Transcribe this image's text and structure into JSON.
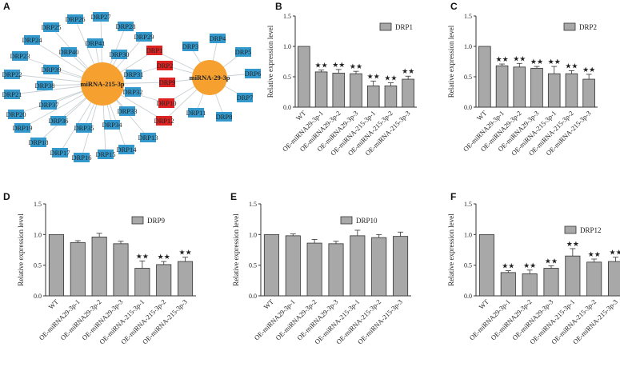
{
  "panel_labels": [
    "A",
    "B",
    "C",
    "D",
    "E",
    "F"
  ],
  "network": {
    "hubs": [
      "miRNA-215-3p",
      "miRNA-29-3p"
    ],
    "hub_color": "#f6a030",
    "blue_color": "#3399cc",
    "red_color": "#dd2222",
    "edge_color": "#c8d0d4",
    "mir215_only_targets": [
      "DRP13",
      "DRP14",
      "DRP15",
      "DRP16",
      "DRP17",
      "DRP18",
      "DRP19",
      "DRP20",
      "DRP21",
      "DRP22",
      "DRP23",
      "DRP24",
      "DRP25",
      "DRP26",
      "DRP27",
      "DRP28",
      "DRP29",
      "DRP30",
      "DRP31",
      "DRP32",
      "DRP33",
      "DRP34",
      "DRP35",
      "DRP36",
      "DRP37",
      "DRP38",
      "DRP39",
      "DRP40",
      "DRP41"
    ],
    "shared_targets": [
      "DRP1",
      "DRP2",
      "DRP9",
      "DRP10",
      "DRP12"
    ],
    "mir29_only_targets": [
      "DRP3",
      "DRP4",
      "DRP5",
      "DRP6",
      "DRP7",
      "DRP8",
      "DRP11"
    ]
  },
  "bar_style": {
    "fill": "#a8a8a8",
    "stroke": "#333333"
  },
  "chart_data": [
    {
      "panel": "B",
      "type": "bar",
      "legend": "DRP1",
      "ylabel": "Relative expression level",
      "ylim": [
        0,
        1.5
      ],
      "yticks": [
        0.0,
        0.5,
        1.0,
        1.5
      ],
      "categories": [
        "WT",
        "OE-miRNA29-3p-1",
        "OE-miRNA29-3p-2",
        "OE-miRNA29-3p-3",
        "OE-miRNA-215-3p-1",
        "OE-miRNA-215-3p-2",
        "OE-miRNA-215-3p-3"
      ],
      "values": [
        1.0,
        0.58,
        0.56,
        0.55,
        0.35,
        0.35,
        0.46
      ],
      "errors": [
        0,
        0.03,
        0.06,
        0.04,
        0.08,
        0.05,
        0.05
      ],
      "significance": [
        "",
        "★★",
        "★★",
        "★★",
        "★★",
        "★★",
        "★★"
      ]
    },
    {
      "panel": "C",
      "type": "bar",
      "legend": "DRP2",
      "ylabel": "Relative expression level",
      "ylim": [
        0,
        1.5
      ],
      "yticks": [
        0.0,
        0.5,
        1.0,
        1.5
      ],
      "categories": [
        "WT",
        "OE-miRNA29-3p-1",
        "OE-miRNA29-3p-2",
        "OE-miRNA29-3p-3",
        "OE-miRNA-215-3p-1",
        "OE-miRNA-215-3p-2",
        "OE-miRNA-215-3p-3"
      ],
      "values": [
        1.0,
        0.68,
        0.66,
        0.64,
        0.55,
        0.55,
        0.46
      ],
      "errors": [
        0,
        0.03,
        0.06,
        0.03,
        0.12,
        0.05,
        0.08
      ],
      "significance": [
        "",
        "★★",
        "★★",
        "★★",
        "★★",
        "★★",
        "★★"
      ]
    },
    {
      "panel": "D",
      "type": "bar",
      "legend": "DRP9",
      "ylabel": "Relative expression level",
      "ylim": [
        0,
        1.5
      ],
      "yticks": [
        0.0,
        0.5,
        1.0,
        1.5
      ],
      "categories": [
        "WT",
        "OE-miRNA29-3p-1",
        "OE-miRNA29-3p-2",
        "OE-miRNA29-3p-3",
        "OE-miRNA-215-3p-1",
        "OE-miRNA-215-3p-2",
        "OE-miRNA-215-3p-3"
      ],
      "values": [
        1.0,
        0.87,
        0.96,
        0.85,
        0.45,
        0.51,
        0.56
      ],
      "errors": [
        0,
        0.03,
        0.06,
        0.04,
        0.12,
        0.05,
        0.07
      ],
      "significance": [
        "",
        "",
        "",
        "",
        "★★",
        "★★",
        "★★"
      ]
    },
    {
      "panel": "E",
      "type": "bar",
      "legend": "DRP10",
      "ylabel": "Relative expression level",
      "ylim": [
        0,
        1.5
      ],
      "yticks": [
        0.0,
        0.5,
        1.0,
        1.5
      ],
      "categories": [
        "WT",
        "OE-miRNA29-3p-1",
        "OE-miRNA29-3p-2",
        "OE-miRNA29-3p-3",
        "OE-miRNA-215-3p-1",
        "OE-miRNA-215-3p-2",
        "OE-miRNA-215-3p-3"
      ],
      "values": [
        1.0,
        0.98,
        0.86,
        0.85,
        0.98,
        0.95,
        0.97
      ],
      "errors": [
        0,
        0.03,
        0.06,
        0.04,
        0.09,
        0.05,
        0.07
      ],
      "significance": [
        "",
        "",
        "",
        "",
        "",
        "",
        ""
      ]
    },
    {
      "panel": "F",
      "type": "bar",
      "legend": "DRP12",
      "ylabel": "Relative expression level",
      "ylim": [
        0,
        1.5
      ],
      "yticks": [
        0.0,
        0.5,
        1.0,
        1.5
      ],
      "categories": [
        "WT",
        "OE-miRNA29-3p-1",
        "OE-miRNA29-3p-2",
        "OE-miRNA29-3p-3",
        "OE-miRNA-215-3p-1",
        "OE-miRNA-215-3p-2",
        "OE-miRNA-215-3p-3"
      ],
      "values": [
        1.0,
        0.38,
        0.36,
        0.45,
        0.65,
        0.55,
        0.56
      ],
      "errors": [
        0,
        0.03,
        0.06,
        0.04,
        0.12,
        0.05,
        0.07
      ],
      "significance": [
        "",
        "★★",
        "★★",
        "★★",
        "★★",
        "★★",
        "★★"
      ]
    }
  ]
}
